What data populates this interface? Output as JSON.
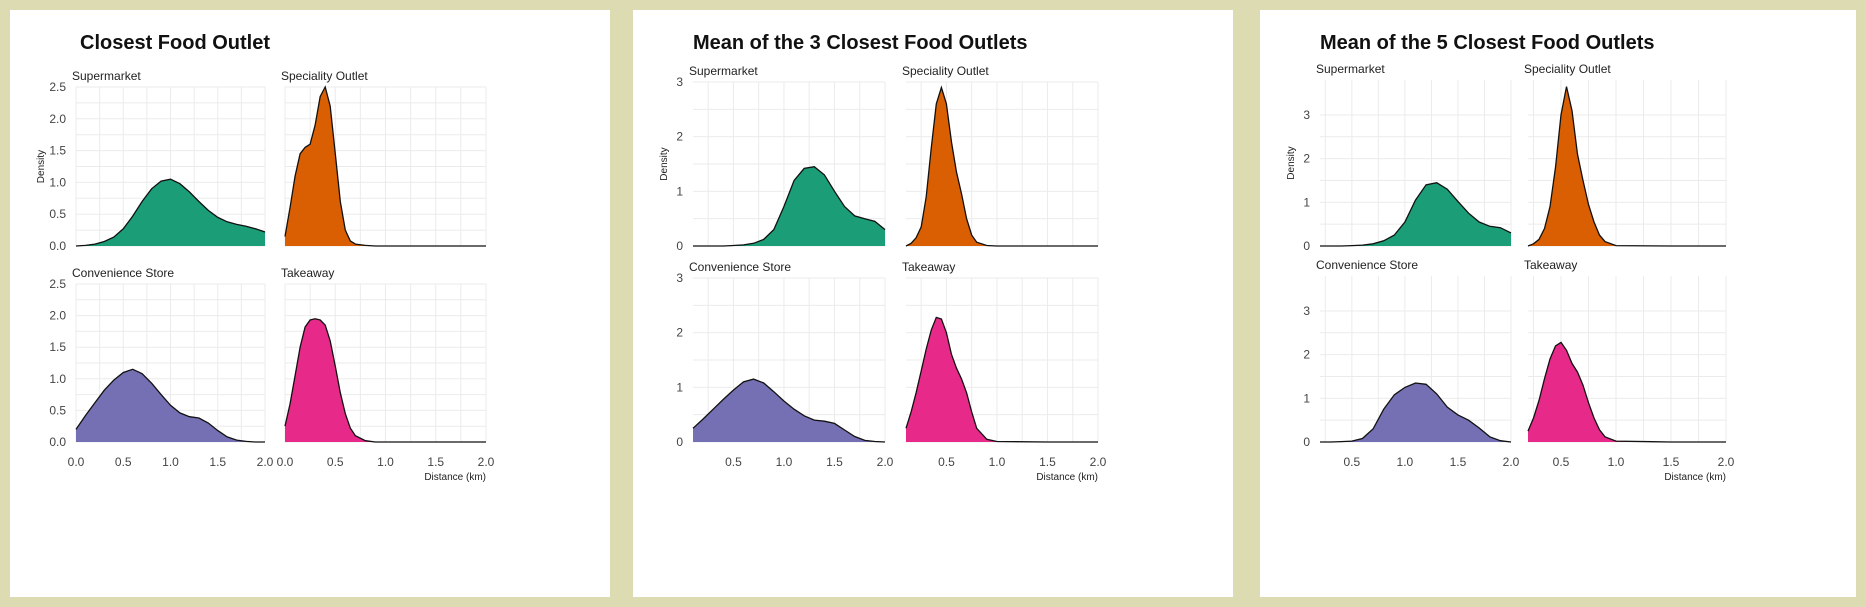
{
  "chart_data": [
    {
      "type": "area",
      "title": "Closest Food Outlet",
      "xlabel": "Distance (km)",
      "ylabel": "Density",
      "xlim": [
        0,
        2
      ],
      "ylim": [
        0,
        2.5
      ],
      "xticks": [
        "0.0",
        "0.5",
        "1.0",
        "1.5",
        "2.0"
      ],
      "yticks": [
        "0.0",
        "0.5",
        "1.0",
        "1.5",
        "2.0",
        "2.5"
      ],
      "grid": true,
      "facets": [
        {
          "name": "Supermarket",
          "color": "#1b9e77",
          "x": [
            0,
            0.1,
            0.2,
            0.3,
            0.4,
            0.5,
            0.6,
            0.7,
            0.8,
            0.9,
            1.0,
            1.1,
            1.2,
            1.3,
            1.4,
            1.5,
            1.6,
            1.7,
            1.8,
            1.9,
            2.0
          ],
          "y": [
            0,
            0.01,
            0.03,
            0.07,
            0.14,
            0.27,
            0.47,
            0.7,
            0.9,
            1.02,
            1.05,
            0.98,
            0.85,
            0.7,
            0.56,
            0.45,
            0.38,
            0.34,
            0.31,
            0.27,
            0.22
          ]
        },
        {
          "name": "Speciality Outlet",
          "color": "#d95f02",
          "x": [
            0,
            0.05,
            0.1,
            0.15,
            0.2,
            0.25,
            0.3,
            0.35,
            0.4,
            0.45,
            0.5,
            0.55,
            0.6,
            0.65,
            0.7,
            0.8,
            0.9,
            1.0,
            1.5,
            2.0
          ],
          "y": [
            0.15,
            0.6,
            1.1,
            1.45,
            1.55,
            1.6,
            1.9,
            2.35,
            2.5,
            2.2,
            1.45,
            0.7,
            0.25,
            0.08,
            0.03,
            0.01,
            0,
            0,
            0,
            0
          ]
        },
        {
          "name": "Convenience Store",
          "color": "#7570b3",
          "x": [
            0,
            0.1,
            0.2,
            0.3,
            0.4,
            0.5,
            0.6,
            0.7,
            0.8,
            0.9,
            1.0,
            1.1,
            1.2,
            1.3,
            1.4,
            1.5,
            1.6,
            1.7,
            1.8,
            1.9,
            2.0
          ],
          "y": [
            0.2,
            0.42,
            0.62,
            0.82,
            0.98,
            1.1,
            1.15,
            1.08,
            0.93,
            0.75,
            0.58,
            0.46,
            0.4,
            0.38,
            0.3,
            0.18,
            0.08,
            0.03,
            0.01,
            0,
            0
          ]
        },
        {
          "name": "Takeaway",
          "color": "#e7298a",
          "x": [
            0,
            0.05,
            0.1,
            0.15,
            0.2,
            0.25,
            0.3,
            0.35,
            0.4,
            0.45,
            0.5,
            0.55,
            0.6,
            0.65,
            0.7,
            0.8,
            0.9,
            1.0,
            1.5,
            2.0
          ],
          "y": [
            0.25,
            0.6,
            1.05,
            1.5,
            1.82,
            1.93,
            1.95,
            1.93,
            1.85,
            1.6,
            1.2,
            0.78,
            0.45,
            0.22,
            0.1,
            0.02,
            0,
            0,
            0,
            0
          ]
        }
      ]
    },
    {
      "type": "area",
      "title": "Mean of the 3 Closest Food Outlets",
      "xlabel": "Distance (km)",
      "ylabel": "Density",
      "xlim": [
        0.1,
        2
      ],
      "ylim": [
        0,
        3
      ],
      "xticks": [
        "0.5",
        "1.0",
        "1.5",
        "2.0"
      ],
      "yticks": [
        "0",
        "1",
        "2",
        "3"
      ],
      "grid": true,
      "facets": [
        {
          "name": "Supermarket",
          "color": "#1b9e77",
          "x": [
            0.1,
            0.2,
            0.3,
            0.4,
            0.5,
            0.6,
            0.7,
            0.8,
            0.9,
            1.0,
            1.1,
            1.2,
            1.3,
            1.4,
            1.5,
            1.6,
            1.7,
            1.8,
            1.9,
            2.0
          ],
          "y": [
            0,
            0,
            0,
            0,
            0.01,
            0.02,
            0.05,
            0.12,
            0.3,
            0.72,
            1.2,
            1.42,
            1.45,
            1.3,
            1.0,
            0.72,
            0.55,
            0.5,
            0.45,
            0.3
          ]
        },
        {
          "name": "Speciality Outlet",
          "color": "#d95f02",
          "x": [
            0.1,
            0.15,
            0.2,
            0.25,
            0.3,
            0.35,
            0.4,
            0.45,
            0.5,
            0.55,
            0.6,
            0.65,
            0.7,
            0.75,
            0.8,
            0.9,
            1.0,
            1.5,
            2.0
          ],
          "y": [
            0,
            0.05,
            0.15,
            0.35,
            0.9,
            1.8,
            2.6,
            2.9,
            2.6,
            1.9,
            1.35,
            0.95,
            0.5,
            0.2,
            0.07,
            0.01,
            0,
            0,
            0
          ]
        },
        {
          "name": "Convenience Store",
          "color": "#7570b3",
          "x": [
            0.1,
            0.2,
            0.3,
            0.4,
            0.5,
            0.6,
            0.7,
            0.8,
            0.9,
            1.0,
            1.1,
            1.2,
            1.3,
            1.4,
            1.5,
            1.6,
            1.7,
            1.8,
            1.9,
            2.0
          ],
          "y": [
            0.25,
            0.42,
            0.6,
            0.78,
            0.95,
            1.1,
            1.15,
            1.08,
            0.92,
            0.75,
            0.6,
            0.48,
            0.4,
            0.38,
            0.34,
            0.22,
            0.1,
            0.03,
            0.01,
            0
          ]
        },
        {
          "name": "Takeaway",
          "color": "#e7298a",
          "x": [
            0.1,
            0.15,
            0.2,
            0.25,
            0.3,
            0.35,
            0.4,
            0.45,
            0.5,
            0.55,
            0.6,
            0.65,
            0.7,
            0.75,
            0.8,
            0.9,
            1.0,
            1.5,
            2.0
          ],
          "y": [
            0.25,
            0.55,
            0.9,
            1.3,
            1.7,
            2.05,
            2.28,
            2.25,
            2.0,
            1.6,
            1.35,
            1.15,
            0.9,
            0.55,
            0.25,
            0.05,
            0.01,
            0,
            0
          ]
        }
      ]
    },
    {
      "type": "area",
      "title": "Mean of the 5 Closest Food Outlets",
      "xlabel": "Distance (km)",
      "ylabel": "Density",
      "xlim": [
        0.2,
        2
      ],
      "ylim": [
        0,
        3.8
      ],
      "xticks": [
        "0.5",
        "1.0",
        "1.5",
        "2.0"
      ],
      "yticks": [
        "0",
        "1",
        "2",
        "3"
      ],
      "grid": true,
      "facets": [
        {
          "name": "Supermarket",
          "color": "#1b9e77",
          "x": [
            0.2,
            0.3,
            0.4,
            0.5,
            0.6,
            0.7,
            0.8,
            0.9,
            1.0,
            1.1,
            1.2,
            1.3,
            1.4,
            1.5,
            1.6,
            1.7,
            1.8,
            1.9,
            2.0
          ],
          "y": [
            0,
            0,
            0,
            0.01,
            0.02,
            0.05,
            0.12,
            0.25,
            0.55,
            1.05,
            1.4,
            1.45,
            1.3,
            1.02,
            0.75,
            0.55,
            0.45,
            0.42,
            0.3
          ]
        },
        {
          "name": "Speciality Outlet",
          "color": "#d95f02",
          "x": [
            0.2,
            0.25,
            0.3,
            0.35,
            0.4,
            0.45,
            0.5,
            0.55,
            0.6,
            0.65,
            0.7,
            0.75,
            0.8,
            0.85,
            0.9,
            1.0,
            1.5,
            2.0
          ],
          "y": [
            0,
            0.05,
            0.15,
            0.4,
            0.9,
            1.8,
            3.0,
            3.65,
            3.1,
            2.1,
            1.5,
            0.95,
            0.55,
            0.25,
            0.1,
            0.01,
            0,
            0
          ]
        },
        {
          "name": "Convenience Store",
          "color": "#7570b3",
          "x": [
            0.2,
            0.3,
            0.4,
            0.5,
            0.6,
            0.7,
            0.8,
            0.9,
            1.0,
            1.1,
            1.2,
            1.3,
            1.4,
            1.5,
            1.6,
            1.7,
            1.8,
            1.9,
            2.0
          ],
          "y": [
            0,
            0,
            0.01,
            0.02,
            0.08,
            0.3,
            0.75,
            1.08,
            1.25,
            1.35,
            1.32,
            1.1,
            0.8,
            0.62,
            0.5,
            0.32,
            0.12,
            0.03,
            0
          ]
        },
        {
          "name": "Takeaway",
          "color": "#e7298a",
          "x": [
            0.2,
            0.25,
            0.3,
            0.35,
            0.4,
            0.45,
            0.5,
            0.55,
            0.6,
            0.65,
            0.7,
            0.75,
            0.8,
            0.85,
            0.9,
            1.0,
            1.5,
            2.0
          ],
          "y": [
            0.25,
            0.55,
            0.95,
            1.45,
            1.9,
            2.2,
            2.28,
            2.1,
            1.8,
            1.6,
            1.3,
            0.9,
            0.55,
            0.28,
            0.12,
            0.02,
            0,
            0
          ]
        }
      ]
    }
  ]
}
